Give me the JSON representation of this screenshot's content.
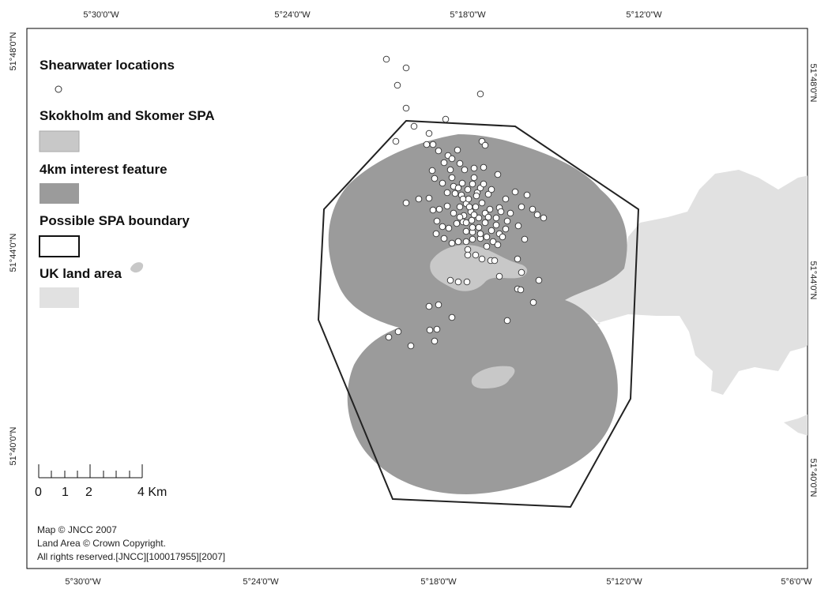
{
  "axes": {
    "top_ticks": [
      "5°30'0\"W",
      "5°24'0\"W",
      "5°18'0\"W",
      "5°12'0\"W"
    ],
    "bottom_ticks": [
      "5°30'0\"W",
      "5°24'0\"W",
      "5°18'0\"W",
      "5°12'0\"W",
      "5°6'0\"W"
    ],
    "left_ticks": [
      "51°48'0\"N",
      "51°44'0\"N",
      "51°40'0\"N"
    ],
    "right_ticks": [
      "51°48'0\"N",
      "51°44'0\"N",
      "51°40'0\"N"
    ]
  },
  "legend": {
    "shearwater": "Shearwater locations",
    "spa": "Skokholm and Skomer SPA",
    "interest": "4km interest feature",
    "boundary": "Possible SPA boundary",
    "land": "UK land area"
  },
  "scale_bar": {
    "labels": [
      "0",
      "1",
      "2",
      "4 Km"
    ]
  },
  "credits": {
    "line1": "Map © JNCC 2007",
    "line2": "Land Area © Crown Copyright.",
    "line3": "All rights reserved.[JNCC][100017955][2007]"
  },
  "colors": {
    "spa": "#c8c8c8",
    "interest": "#9b9b9b",
    "land": "#e1e1e1",
    "boundary": "#222222",
    "points_fill": "#ffffff",
    "points_stroke": "#333333"
  }
}
